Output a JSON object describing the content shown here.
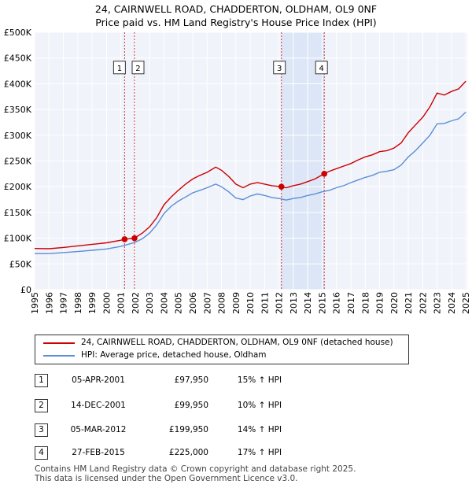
{
  "chart_data": {
    "type": "line",
    "title": "24, CAIRNWELL ROAD, CHADDERTON, OLDHAM, OL9 0NF",
    "subtitle": "Price paid vs. HM Land Registry's House Price Index (HPI)",
    "xlim": [
      1995,
      2025.1
    ],
    "ylim": [
      0,
      500000
    ],
    "x_ticks": [
      "1995",
      "1996",
      "1997",
      "1998",
      "1999",
      "2000",
      "2001",
      "2002",
      "2003",
      "2004",
      "2005",
      "2006",
      "2007",
      "2008",
      "2009",
      "2010",
      "2011",
      "2012",
      "2013",
      "2014",
      "2015",
      "2016",
      "2017",
      "2018",
      "2019",
      "2020",
      "2021",
      "2022",
      "2023",
      "2024",
      "2025"
    ],
    "y_ticks": [
      {
        "value": 0,
        "label": "£0"
      },
      {
        "value": 50000,
        "label": "£50K"
      },
      {
        "value": 100000,
        "label": "£100K"
      },
      {
        "value": 150000,
        "label": "£150K"
      },
      {
        "value": 200000,
        "label": "£200K"
      },
      {
        "value": 250000,
        "label": "£250K"
      },
      {
        "value": 300000,
        "label": "£300K"
      },
      {
        "value": 350000,
        "label": "£350K"
      },
      {
        "value": 400000,
        "label": "£400K"
      },
      {
        "value": 450000,
        "label": "£450K"
      },
      {
        "value": 500000,
        "label": "£500K"
      }
    ],
    "series": [
      {
        "name": "24, CAIRNWELL ROAD, CHADDERTON, OLDHAM, OL9 0NF (detached house)",
        "color": "#cc0000",
        "points": [
          [
            1995,
            80000
          ],
          [
            1996,
            79500
          ],
          [
            1997,
            82000
          ],
          [
            1998,
            85000
          ],
          [
            1999,
            88000
          ],
          [
            2000,
            91000
          ],
          [
            2001,
            96000
          ],
          [
            2001.3,
            97950
          ],
          [
            2001.95,
            99950
          ],
          [
            2002.5,
            110000
          ],
          [
            2003,
            122000
          ],
          [
            2003.5,
            140000
          ],
          [
            2004,
            165000
          ],
          [
            2004.5,
            180000
          ],
          [
            2005,
            193000
          ],
          [
            2005.5,
            205000
          ],
          [
            2006,
            215000
          ],
          [
            2006.5,
            222000
          ],
          [
            2007,
            228000
          ],
          [
            2007.6,
            238000
          ],
          [
            2008,
            232000
          ],
          [
            2008.5,
            220000
          ],
          [
            2009,
            205000
          ],
          [
            2009.5,
            198000
          ],
          [
            2010,
            205000
          ],
          [
            2010.5,
            208000
          ],
          [
            2011,
            205000
          ],
          [
            2011.5,
            202000
          ],
          [
            2012.17,
            199950
          ],
          [
            2012.5,
            198000
          ],
          [
            2013,
            202000
          ],
          [
            2013.5,
            205000
          ],
          [
            2014,
            210000
          ],
          [
            2014.5,
            215000
          ],
          [
            2015.15,
            225000
          ],
          [
            2015.5,
            230000
          ],
          [
            2016,
            235000
          ],
          [
            2016.5,
            240000
          ],
          [
            2017,
            245000
          ],
          [
            2017.5,
            252000
          ],
          [
            2018,
            258000
          ],
          [
            2018.5,
            262000
          ],
          [
            2019,
            268000
          ],
          [
            2019.5,
            270000
          ],
          [
            2020,
            275000
          ],
          [
            2020.5,
            285000
          ],
          [
            2021,
            305000
          ],
          [
            2021.5,
            320000
          ],
          [
            2022,
            335000
          ],
          [
            2022.5,
            355000
          ],
          [
            2023,
            382000
          ],
          [
            2023.5,
            378000
          ],
          [
            2024,
            385000
          ],
          [
            2024.5,
            390000
          ],
          [
            2025,
            405000
          ]
        ]
      },
      {
        "name": "HPI: Average price, detached house, Oldham",
        "color": "#5b8ed6",
        "points": [
          [
            1995,
            70000
          ],
          [
            1996,
            70000
          ],
          [
            1997,
            72000
          ],
          [
            1998,
            74000
          ],
          [
            1999,
            76500
          ],
          [
            2000,
            79000
          ],
          [
            2001,
            84000
          ],
          [
            2001.5,
            88000
          ],
          [
            2002,
            92000
          ],
          [
            2002.5,
            99000
          ],
          [
            2003,
            110000
          ],
          [
            2003.5,
            126000
          ],
          [
            2004,
            148000
          ],
          [
            2004.5,
            162000
          ],
          [
            2005,
            172000
          ],
          [
            2005.5,
            180000
          ],
          [
            2006,
            188000
          ],
          [
            2006.5,
            193000
          ],
          [
            2007,
            198000
          ],
          [
            2007.6,
            205000
          ],
          [
            2008,
            200000
          ],
          [
            2008.5,
            190000
          ],
          [
            2009,
            178000
          ],
          [
            2009.5,
            175000
          ],
          [
            2010,
            182000
          ],
          [
            2010.5,
            186000
          ],
          [
            2011,
            183000
          ],
          [
            2011.5,
            179000
          ],
          [
            2012,
            177000
          ],
          [
            2012.5,
            174000
          ],
          [
            2013,
            177000
          ],
          [
            2013.5,
            179000
          ],
          [
            2014,
            183000
          ],
          [
            2014.5,
            186000
          ],
          [
            2015,
            190000
          ],
          [
            2015.5,
            193000
          ],
          [
            2016,
            198000
          ],
          [
            2016.5,
            202000
          ],
          [
            2017,
            208000
          ],
          [
            2017.5,
            213000
          ],
          [
            2018,
            218000
          ],
          [
            2018.5,
            222000
          ],
          [
            2019,
            228000
          ],
          [
            2019.5,
            230000
          ],
          [
            2020,
            233000
          ],
          [
            2020.5,
            242000
          ],
          [
            2021,
            258000
          ],
          [
            2021.5,
            270000
          ],
          [
            2022,
            285000
          ],
          [
            2022.5,
            300000
          ],
          [
            2023,
            322000
          ],
          [
            2023.5,
            323000
          ],
          [
            2024,
            328000
          ],
          [
            2024.5,
            332000
          ],
          [
            2025,
            345000
          ]
        ]
      }
    ],
    "shaded_region": [
      2012.17,
      2015.15
    ],
    "annotations": [
      {
        "label": "1",
        "x": 2001.26,
        "y": 97950
      },
      {
        "label": "2",
        "x": 2001.95,
        "y": 99950
      },
      {
        "label": "3",
        "x": 2012.17,
        "y": 199950
      },
      {
        "label": "4",
        "x": 2015.15,
        "y": 225000
      }
    ],
    "box_y_value": 430000
  },
  "legend": {
    "entries": [
      {
        "label": "24, CAIRNWELL ROAD, CHADDERTON, OLDHAM, OL9 0NF (detached house)",
        "color": "#cc0000"
      },
      {
        "label": "HPI: Average price, detached house, Oldham",
        "color": "#5b8ed6"
      }
    ]
  },
  "transactions": [
    {
      "num": "1",
      "date": "05-APR-2001",
      "price": "£97,950",
      "hpi": "15% ↑ HPI"
    },
    {
      "num": "2",
      "date": "14-DEC-2001",
      "price": "£99,950",
      "hpi": "10% ↑ HPI"
    },
    {
      "num": "3",
      "date": "05-MAR-2012",
      "price": "£199,950",
      "hpi": "14% ↑ HPI"
    },
    {
      "num": "4",
      "date": "27-FEB-2015",
      "price": "£225,000",
      "hpi": "17% ↑ HPI"
    }
  ],
  "footer": {
    "line1": "Contains HM Land Registry data © Crown copyright and database right 2025.",
    "line2": "This data is licensed under the Open Government Licence v3.0."
  }
}
